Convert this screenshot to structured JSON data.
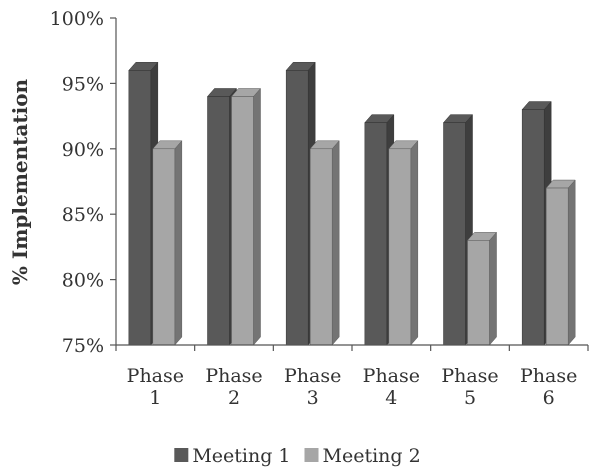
{
  "chart_data": {
    "type": "bar",
    "style": "3d-clustered-column",
    "title": "",
    "xlabel": "",
    "ylabel": "% Implementation",
    "categories": [
      [
        "Phase",
        "1"
      ],
      [
        "Phase",
        "2"
      ],
      [
        "Phase",
        "3"
      ],
      [
        "Phase",
        "4"
      ],
      [
        "Phase",
        "5"
      ],
      [
        "Phase",
        "6"
      ]
    ],
    "series": [
      {
        "name": "Meeting 1",
        "values": [
          96,
          94,
          96,
          92,
          92,
          93
        ],
        "color": "#595959"
      },
      {
        "name": "Meeting 2",
        "values": [
          90,
          94,
          90,
          90,
          83,
          87
        ],
        "color": "#a6a6a6"
      }
    ],
    "ylim": [
      75,
      100
    ],
    "yticks": [
      75,
      80,
      85,
      90,
      95,
      100
    ],
    "ytick_format": "percent",
    "grid": false,
    "legend": "bottom-center"
  }
}
